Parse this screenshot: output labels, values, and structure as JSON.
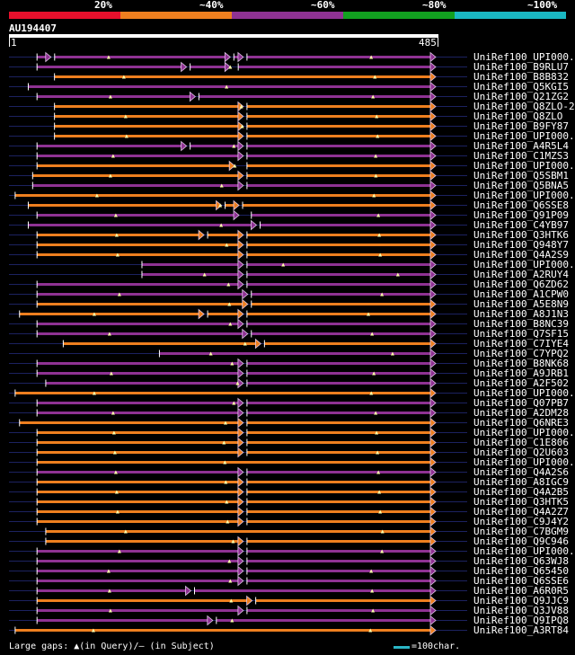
{
  "header": {
    "identity_scale": [
      {
        "label": "20%",
        "color": "#e8102c"
      },
      {
        "label": "~40%",
        "color": "#ee7f1f"
      },
      {
        "label": "~60%",
        "color": "#8f3293"
      },
      {
        "label": "~80%",
        "color": "#12a020"
      },
      {
        "label": "~100%",
        "color": "#1ab8c3"
      }
    ]
  },
  "query": {
    "id": "AU194407",
    "start_label": "1",
    "end_label": "485",
    "length": 485
  },
  "colors": {
    "orange": "#ee7f1f",
    "purple": "#8f3293",
    "guide": "#1c2260",
    "marker": "#ffffaa"
  },
  "hits": [
    {
      "label": "UniRef100_UPI000..",
      "color": "purple",
      "start": 30,
      "end": 485,
      "gaps": [
        265,
        45,
        250
      ]
    },
    {
      "label": "UniRef100_B9RLU7",
      "color": "purple",
      "start": 30,
      "end": 485,
      "gaps": [
        200,
        255,
        250
      ]
    },
    {
      "label": "UniRef100_B8B832",
      "color": "orange",
      "start": 50,
      "end": 485,
      "gaps": []
    },
    {
      "label": "UniRef100_Q5KGI5",
      "color": "purple",
      "start": 20,
      "end": 485,
      "gaps": []
    },
    {
      "label": "UniRef100_Q21ZG2",
      "color": "purple",
      "start": 30,
      "end": 485,
      "gaps": [
        210
      ]
    },
    {
      "label": "UniRef100_Q8ZLO-2",
      "color": "orange",
      "start": 50,
      "end": 485,
      "gaps": [
        265
      ]
    },
    {
      "label": "UniRef100_Q8ZLO",
      "color": "orange",
      "start": 50,
      "end": 485,
      "gaps": [
        265
      ]
    },
    {
      "label": "UniRef100_B9FY87",
      "color": "orange",
      "start": 50,
      "end": 485,
      "gaps": [
        265
      ]
    },
    {
      "label": "UniRef100_UPI000..",
      "color": "orange",
      "start": 50,
      "end": 485,
      "gaps": [
        265
      ]
    },
    {
      "label": "UniRef100_A4R5L4",
      "color": "purple",
      "start": 30,
      "end": 485,
      "gaps": [
        200,
        265
      ]
    },
    {
      "label": "UniRef100_C1MZS3",
      "color": "purple",
      "start": 30,
      "end": 485,
      "gaps": [
        265
      ]
    },
    {
      "label": "UniRef100_UPI000..",
      "color": "orange",
      "start": 30,
      "end": 485,
      "gaps": [
        255,
        265
      ]
    },
    {
      "label": "UniRef100_Q5SBM1",
      "color": "orange",
      "start": 25,
      "end": 485,
      "gaps": [
        265
      ]
    },
    {
      "label": "UniRef100_Q5BNA5",
      "color": "purple",
      "start": 25,
      "end": 485,
      "gaps": [
        265
      ]
    },
    {
      "label": "UniRef100_UPI000..",
      "color": "orange",
      "start": 5,
      "end": 485,
      "gaps": []
    },
    {
      "label": "UniRef100_Q6SSE8",
      "color": "orange",
      "start": 20,
      "end": 485,
      "gaps": [
        240,
        260
      ]
    },
    {
      "label": "UniRef100_Q91P09",
      "color": "purple",
      "start": 30,
      "end": 485,
      "gaps": [
        260,
        270
      ]
    },
    {
      "label": "UniRef100_C4YB97",
      "color": "purple",
      "start": 20,
      "end": 485,
      "gaps": [
        280
      ]
    },
    {
      "label": "UniRef100_Q3HTK6",
      "color": "orange",
      "start": 30,
      "end": 485,
      "gaps": [
        220,
        265
      ]
    },
    {
      "label": "UniRef100_Q948Y7",
      "color": "orange",
      "start": 30,
      "end": 485,
      "gaps": [
        265
      ]
    },
    {
      "label": "UniRef100_Q4A2S9",
      "color": "orange",
      "start": 30,
      "end": 485,
      "gaps": [
        265
      ]
    },
    {
      "label": "UniRef100_UPI000..",
      "color": "purple",
      "start": 150,
      "end": 485,
      "gaps": [
        265
      ]
    },
    {
      "label": "UniRef100_A2RUY4",
      "color": "purple",
      "start": 150,
      "end": 485,
      "gaps": [
        265
      ]
    },
    {
      "label": "UniRef100_Q6ZD62",
      "color": "purple",
      "start": 30,
      "end": 485,
      "gaps": [
        265
      ]
    },
    {
      "label": "UniRef100_A1CPW0",
      "color": "purple",
      "start": 30,
      "end": 485,
      "gaps": [
        270
      ]
    },
    {
      "label": "UniRef100_A5E8N9",
      "color": "orange",
      "start": 30,
      "end": 485,
      "gaps": [
        270
      ]
    },
    {
      "label": "UniRef100_A8J1N3",
      "color": "orange",
      "start": 10,
      "end": 485,
      "gaps": [
        220,
        265
      ]
    },
    {
      "label": "UniRef100_B8NC39",
      "color": "purple",
      "start": 30,
      "end": 485,
      "gaps": [
        265
      ]
    },
    {
      "label": "UniRef100_Q7SF15",
      "color": "purple",
      "start": 30,
      "end": 485,
      "gaps": [
        270
      ]
    },
    {
      "label": "UniRef100_C7IYE4",
      "color": "orange",
      "start": 60,
      "end": 485,
      "gaps": [
        285
      ]
    },
    {
      "label": "UniRef100_C7YPQ2",
      "color": "purple",
      "start": 170,
      "end": 485,
      "gaps": []
    },
    {
      "label": "UniRef100_B8NK68",
      "color": "purple",
      "start": 30,
      "end": 485,
      "gaps": [
        265
      ]
    },
    {
      "label": "UniRef100_A9JRB1",
      "color": "purple",
      "start": 30,
      "end": 485,
      "gaps": [
        265
      ]
    },
    {
      "label": "UniRef100_A2F502",
      "color": "purple",
      "start": 40,
      "end": 485,
      "gaps": [
        265
      ]
    },
    {
      "label": "UniRef100_UPI000..",
      "color": "orange",
      "start": 5,
      "end": 485,
      "gaps": []
    },
    {
      "label": "UniRef100_Q07PB7",
      "color": "purple",
      "start": 30,
      "end": 485,
      "gaps": [
        265
      ]
    },
    {
      "label": "UniRef100_A2DM28",
      "color": "purple",
      "start": 30,
      "end": 485,
      "gaps": [
        265
      ]
    },
    {
      "label": "UniRef100_Q6NRE3",
      "color": "orange",
      "start": 10,
      "end": 485,
      "gaps": [
        265
      ]
    },
    {
      "label": "UniRef100_UPI000..",
      "color": "orange",
      "start": 30,
      "end": 485,
      "gaps": [
        265
      ]
    },
    {
      "label": "UniRef100_C1E806",
      "color": "orange",
      "start": 30,
      "end": 485,
      "gaps": [
        265
      ]
    },
    {
      "label": "UniRef100_Q2U603",
      "color": "orange",
      "start": 30,
      "end": 485,
      "gaps": [
        265
      ]
    },
    {
      "label": "UniRef100_UPI000..",
      "color": "orange",
      "start": 30,
      "end": 485,
      "gaps": []
    },
    {
      "label": "UniRef100_Q4A2S6",
      "color": "purple",
      "start": 30,
      "end": 485,
      "gaps": [
        265
      ]
    },
    {
      "label": "UniRef100_A8IGC9",
      "color": "orange",
      "start": 30,
      "end": 485,
      "gaps": [
        265
      ]
    },
    {
      "label": "UniRef100_Q4A2B5",
      "color": "orange",
      "start": 30,
      "end": 485,
      "gaps": [
        265
      ]
    },
    {
      "label": "UniRef100_Q3HTK5",
      "color": "orange",
      "start": 30,
      "end": 485,
      "gaps": [
        265
      ]
    },
    {
      "label": "UniRef100_Q4A2Z7",
      "color": "orange",
      "start": 30,
      "end": 485,
      "gaps": [
        265
      ]
    },
    {
      "label": "UniRef100_C9J4Y2",
      "color": "orange",
      "start": 30,
      "end": 485,
      "gaps": [
        265
      ]
    },
    {
      "label": "UniRef100_C7BGM9",
      "color": "orange",
      "start": 40,
      "end": 485,
      "gaps": []
    },
    {
      "label": "UniRef100_Q9C946",
      "color": "orange",
      "start": 40,
      "end": 485,
      "gaps": [
        265
      ]
    },
    {
      "label": "UniRef100_UPI000..",
      "color": "purple",
      "start": 30,
      "end": 485,
      "gaps": [
        265
      ]
    },
    {
      "label": "UniRef100_Q63WJ8",
      "color": "purple",
      "start": 30,
      "end": 485,
      "gaps": [
        265
      ]
    },
    {
      "label": "UniRef100_Q65450",
      "color": "purple",
      "start": 30,
      "end": 485,
      "gaps": [
        265
      ]
    },
    {
      "label": "UniRef100_Q6SSE6",
      "color": "purple",
      "start": 30,
      "end": 485,
      "gaps": [
        265
      ]
    },
    {
      "label": "UniRef100_A6R0R5",
      "color": "purple",
      "start": 30,
      "end": 485,
      "gaps": [
        205
      ]
    },
    {
      "label": "UniRef100_Q9JJC9",
      "color": "orange",
      "start": 30,
      "end": 485,
      "gaps": [
        275
      ]
    },
    {
      "label": "UniRef100_Q3JV88",
      "color": "purple",
      "start": 30,
      "end": 485,
      "gaps": [
        265
      ]
    },
    {
      "label": "UniRef100_Q9IPQ8",
      "color": "purple",
      "start": 30,
      "end": 485,
      "gaps": [
        230
      ]
    },
    {
      "label": "UniRef100_A3RT84",
      "color": "orange",
      "start": 5,
      "end": 485,
      "gaps": []
    }
  ],
  "legend": {
    "gaps_text": "Large gaps: ▲(in Query)/– (in Subject)",
    "scale_text": "=100char."
  }
}
